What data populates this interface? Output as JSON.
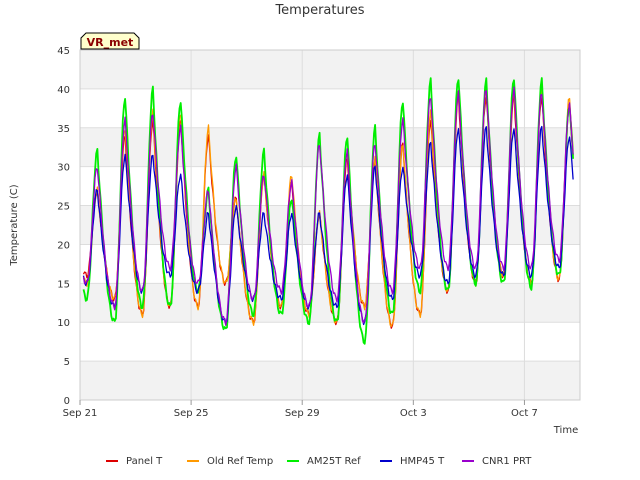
{
  "chart_data": {
    "type": "line",
    "title": "Temperatures",
    "xlabel": "Time",
    "ylabel": "Temperature (C)",
    "station_label": "VR_met",
    "xlim": [
      "2024-09-21",
      "2024-10-09"
    ],
    "ylim": [
      0,
      45
    ],
    "yticks": [
      0,
      5,
      10,
      15,
      20,
      25,
      30,
      35,
      40,
      45
    ],
    "xticks": [
      {
        "date": "2024-09-21",
        "label": "Sep 21"
      },
      {
        "date": "2024-09-25",
        "label": "Sep 25"
      },
      {
        "date": "2024-09-29",
        "label": "Sep 29"
      },
      {
        "date": "2024-10-03",
        "label": "Oct 3"
      },
      {
        "date": "2024-10-07",
        "label": "Oct 7"
      }
    ],
    "grid": true,
    "legend_position": "bottom",
    "day_start": "2024-09-21",
    "daily_cycle_note": "Daily min/max estimated from plot; series vary diurnally with max near mid-afternoon.",
    "series": [
      {
        "name": "Panel T",
        "color": "#dd0000",
        "daily_min": [
          16,
          13,
          11,
          12,
          12,
          15,
          10,
          12,
          11,
          10,
          12,
          9.5,
          11,
          14,
          15,
          16,
          15,
          15.5
        ],
        "daily_max": [
          27,
          34,
          36,
          36,
          34,
          26,
          29,
          28,
          24,
          31,
          31,
          33,
          36,
          39,
          39,
          39,
          39,
          38
        ]
      },
      {
        "name": "Old Ref Temp",
        "color": "#ff9900",
        "daily_min": [
          15,
          13,
          11,
          12,
          12,
          15,
          10,
          12,
          11,
          10,
          12,
          9.5,
          11,
          14,
          15,
          16,
          15,
          15.5
        ],
        "daily_max": [
          27,
          35,
          37,
          37,
          35,
          26,
          29,
          29,
          24,
          32,
          31,
          33,
          37,
          40,
          40,
          40,
          40,
          39
        ]
      },
      {
        "name": "AM25T Ref",
        "color": "#00ee00",
        "daily_min": [
          13,
          10,
          12,
          12,
          14,
          9,
          11,
          11,
          10,
          10,
          7.5,
          11,
          14,
          14,
          15,
          15,
          14.5,
          16
        ],
        "daily_max": [
          32,
          39,
          40,
          38.5,
          27,
          31.5,
          32,
          26,
          34,
          34,
          35,
          38.5,
          41,
          41.5,
          41,
          41.5,
          41,
          38
        ]
      },
      {
        "name": "HMP45 T",
        "color": "#0000cc",
        "daily_min": [
          15,
          12,
          14,
          16,
          14,
          10,
          13,
          13,
          12,
          12,
          10,
          13,
          16,
          15,
          16,
          16,
          16,
          17
        ],
        "daily_max": [
          27,
          31.5,
          31.5,
          29,
          24,
          25,
          24,
          24,
          24,
          29,
          30,
          30,
          33,
          35,
          35,
          35,
          35,
          34
        ]
      },
      {
        "name": "CNR1 PRT",
        "color": "#9900cc",
        "daily_min": [
          15,
          12,
          14,
          17,
          15,
          10,
          13,
          14,
          12,
          13,
          10,
          14,
          17,
          17,
          17,
          17,
          17,
          18
        ],
        "daily_max": [
          30,
          36,
          37,
          35,
          27,
          30,
          29,
          28,
          33,
          32,
          33,
          36,
          39,
          39.5,
          40,
          40,
          39.5,
          38
        ]
      }
    ]
  }
}
